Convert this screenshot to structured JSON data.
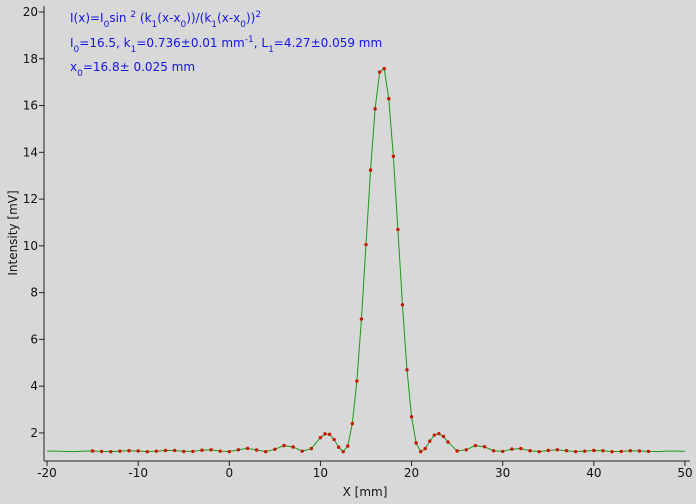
{
  "chart_data": {
    "type": "scatter",
    "x_label": "X [mm]",
    "y_label": "Intensity [mV]",
    "annotations": [
      [
        "I(x)=I",
        {
          "sub": "0"
        },
        "sin ",
        {
          "sup": "2"
        },
        " (k",
        {
          "sub": "1"
        },
        "(x-x",
        {
          "sub": "0"
        },
        "))/(k",
        {
          "sub": "1"
        },
        "(x-x",
        {
          "sub": "0"
        },
        "))",
        {
          "sup": "2"
        }
      ],
      [
        "I",
        {
          "sub": "0"
        },
        "=16.5,  k",
        {
          "sub": "1"
        },
        "=0.736±0.01 mm",
        {
          "sup": "-1"
        },
        ",   L",
        {
          "sub": "1"
        },
        "=4.27±0.059 mm"
      ],
      [
        "x",
        {
          "sub": "0"
        },
        "=16.8±  0.025 mm"
      ]
    ],
    "annotation_color": "#1414e6",
    "xlim": [
      -20.3,
      50.3
    ],
    "ylim": [
      0.8,
      20
    ],
    "xticks": [
      -20,
      -10,
      0,
      10,
      20,
      30,
      40,
      50
    ],
    "yticks": [
      2,
      4,
      6,
      8,
      10,
      12,
      14,
      16,
      18,
      20
    ],
    "grid": false,
    "series": [
      {
        "type": "line",
        "color": "#1a9a1a",
        "x": [
          -20,
          -19,
          -18,
          -17,
          -16,
          -15,
          -14,
          -13,
          -12,
          -11,
          -10,
          -9,
          -8,
          -7,
          -6,
          -5,
          -4,
          -3,
          -2,
          -1,
          0,
          1,
          2,
          3,
          4,
          5,
          6,
          7,
          8,
          9,
          10,
          10.5,
          11,
          11.5,
          12,
          12.5,
          13,
          13.5,
          14,
          14.5,
          15,
          15.5,
          16,
          16.5,
          17,
          17.5,
          18,
          18.5,
          19,
          19.5,
          20,
          20.5,
          21,
          21.5,
          22,
          22.5,
          23,
          23.5,
          24,
          25,
          26,
          27,
          28,
          29,
          30,
          31,
          32,
          33,
          34,
          35,
          36,
          37,
          38,
          39,
          40,
          41,
          42,
          43,
          44,
          45,
          46,
          47,
          48,
          49,
          50
        ],
        "values": [
          1.22,
          1.22,
          1.21,
          1.2,
          1.22,
          1.23,
          1.21,
          1.2,
          1.22,
          1.24,
          1.23,
          1.2,
          1.22,
          1.25,
          1.25,
          1.21,
          1.21,
          1.26,
          1.28,
          1.22,
          1.2,
          1.28,
          1.34,
          1.27,
          1.2,
          1.3,
          1.46,
          1.4,
          1.22,
          1.33,
          1.8,
          1.96,
          1.94,
          1.72,
          1.39,
          1.2,
          1.44,
          2.4,
          4.22,
          6.87,
          10.05,
          13.24,
          15.86,
          17.43,
          17.58,
          16.29,
          13.83,
          10.7,
          7.48,
          4.7,
          2.69,
          1.57,
          1.2,
          1.33,
          1.65,
          1.91,
          1.97,
          1.85,
          1.61,
          1.23,
          1.28,
          1.46,
          1.41,
          1.24,
          1.21,
          1.31,
          1.33,
          1.24,
          1.2,
          1.25,
          1.28,
          1.24,
          1.2,
          1.22,
          1.25,
          1.24,
          1.2,
          1.21,
          1.24,
          1.23,
          1.21,
          1.2,
          1.22,
          1.23,
          1.21
        ]
      },
      {
        "type": "scatter",
        "color": "#c81400",
        "x": [
          -15,
          -14,
          -13,
          -12,
          -11,
          -10,
          -9,
          -8,
          -7,
          -6,
          -5,
          -4,
          -3,
          -2,
          -1,
          0,
          1,
          2,
          3,
          4,
          5,
          6,
          7,
          8,
          9,
          10,
          10.5,
          11,
          11.5,
          12,
          12.5,
          13,
          13.5,
          14,
          14.5,
          15,
          15.5,
          16,
          16.5,
          17,
          17.5,
          18,
          18.5,
          19,
          19.5,
          20,
          20.5,
          21,
          21.5,
          22,
          22.5,
          23,
          23.5,
          24,
          25,
          26,
          27,
          28,
          29,
          30,
          31,
          32,
          33,
          34,
          35,
          36,
          37,
          38,
          39,
          40,
          41,
          42,
          43,
          44,
          45,
          46
        ],
        "values": [
          1.23,
          1.21,
          1.2,
          1.22,
          1.24,
          1.23,
          1.2,
          1.22,
          1.25,
          1.25,
          1.21,
          1.21,
          1.26,
          1.28,
          1.22,
          1.2,
          1.28,
          1.34,
          1.27,
          1.2,
          1.3,
          1.46,
          1.4,
          1.22,
          1.33,
          1.8,
          1.96,
          1.94,
          1.72,
          1.39,
          1.2,
          1.44,
          2.4,
          4.22,
          6.87,
          10.05,
          13.24,
          15.86,
          17.43,
          17.58,
          16.29,
          13.83,
          10.7,
          7.48,
          4.7,
          2.69,
          1.57,
          1.2,
          1.33,
          1.65,
          1.91,
          1.97,
          1.85,
          1.61,
          1.23,
          1.28,
          1.46,
          1.41,
          1.24,
          1.21,
          1.31,
          1.33,
          1.24,
          1.2,
          1.25,
          1.28,
          1.24,
          1.2,
          1.22,
          1.25,
          1.24,
          1.2,
          1.21,
          1.24,
          1.23,
          1.21
        ]
      }
    ]
  }
}
